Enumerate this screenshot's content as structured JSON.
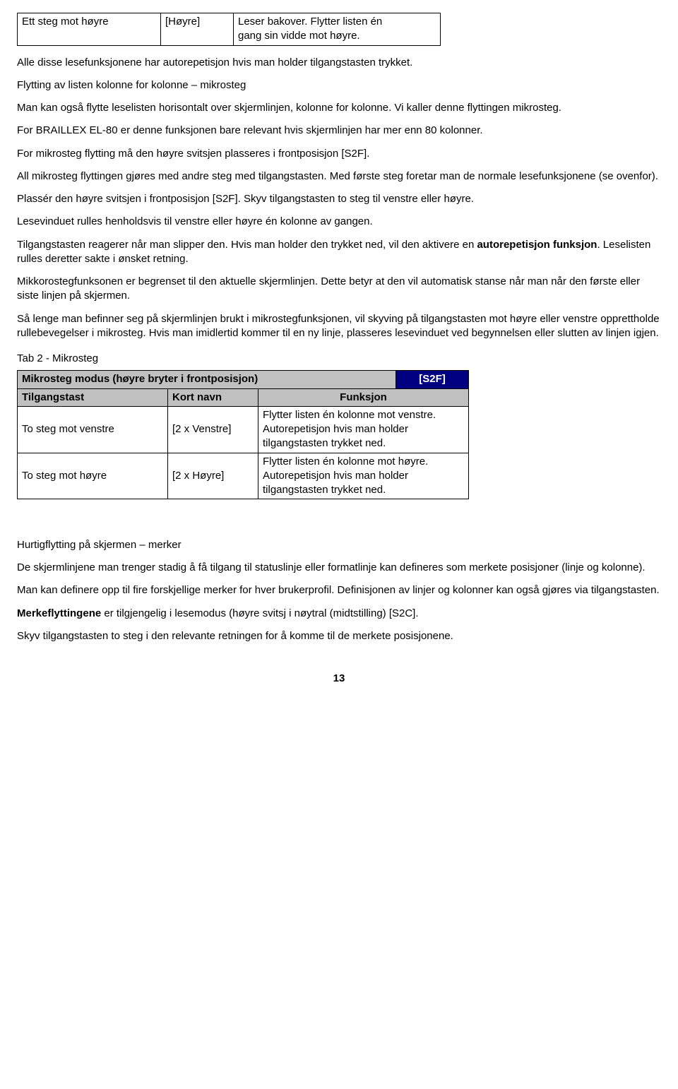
{
  "table1": {
    "row": {
      "c1": "Ett steg mot høyre",
      "c2": "[Høyre]",
      "c3a": "Leser bakover. Flytter listen én",
      "c3b": "gang sin vidde mot høyre."
    }
  },
  "para": {
    "p1": "Alle disse lesefunksjonene har autorepetisjon hvis man holder tilgangstasten trykket.",
    "p2": "Flytting av listen kolonne for kolonne – mikrosteg",
    "p3": "Man kan også flytte leselisten horisontalt over skjermlinjen, kolonne for kolonne. Vi kaller denne flyttingen mikrosteg.",
    "p4": "For BRAILLEX EL-80 er denne funksjonen bare relevant hvis skjermlinjen har mer enn 80 kolonner.",
    "p5": "For mikrosteg flytting må den høyre svitsjen plasseres i frontposisjon [S2F].",
    "p6": "All mikrosteg flyttingen gjøres med andre steg med tilgangstasten. Med første steg foretar man de normale lesefunksjonene (se ovenfor).",
    "p7": "Plassér den høyre svitsjen i frontposisjon [S2F]. Skyv tilgangstasten to steg til venstre eller høyre.",
    "p8": "Lesevinduet rulles henholdsvis til venstre eller høyre én kolonne av gangen.",
    "p9a": "Tilgangstasten reagerer når man slipper den. Hvis man holder den trykket ned, vil den aktivere en ",
    "p9b": "autorepetisjon funksjon",
    "p9c": ". Leselisten rulles deretter sakte i ønsket retning.",
    "p10": "Mikkorostegfunksonen er begrenset til den aktuelle skjermlinjen. Dette betyr at den vil automatisk stanse når man når den første eller siste linjen på skjermen.",
    "p11": "Så lenge man befinner seg på skjermlinjen brukt i mikrostegfunksjonen, vil skyving på tilgangstasten mot høyre eller venstre opprettholde rullebevegelser i mikrosteg. Hvis man imidlertid kommer til en ny linje, plasseres lesevinduet ved begynnelsen eller slutten av linjen igjen."
  },
  "tab2": {
    "caption": "Tab 2 - Mikrosteg",
    "title": "Mikrosteg modus (høyre bryter i frontposisjon)",
    "code": "[S2F]",
    "h1": "Tilgangstast",
    "h2": "Kort navn",
    "h3": "Funksjon",
    "r1c1": "To steg mot venstre",
    "r1c2": "[2 x Venstre]",
    "r1c3": "Flytter listen én kolonne mot venstre. Autorepetisjon hvis man holder tilgangstasten trykket ned.",
    "r2c1": "To steg mot høyre",
    "r2c2": "[2 x Høyre]",
    "r2c3": "Flytter listen én kolonne mot høyre. Autorepetisjon hvis man holder tilgangstasten trykket ned."
  },
  "para2": {
    "p12": "Hurtigflytting på skjermen – merker",
    "p13": "De skjermlinjene man trenger stadig å få tilgang til statuslinje eller formatlinje kan defineres som merkete posisjoner (linje og kolonne).",
    "p14": "Man kan definere opp til fire forskjellige merker for hver brukerprofil. Definisjonen av linjer og kolonner kan også gjøres via tilgangstasten.",
    "p15a": "Merkeflyttingene",
    "p15b": "  er tilgjengelig i lesemodus (høyre svitsj i nøytral (midtstilling) [S2C].",
    "p16": "Skyv tilgangstasten to steg i den relevante retningen for å komme til de merkete posisjonene."
  },
  "pagenum": "13"
}
